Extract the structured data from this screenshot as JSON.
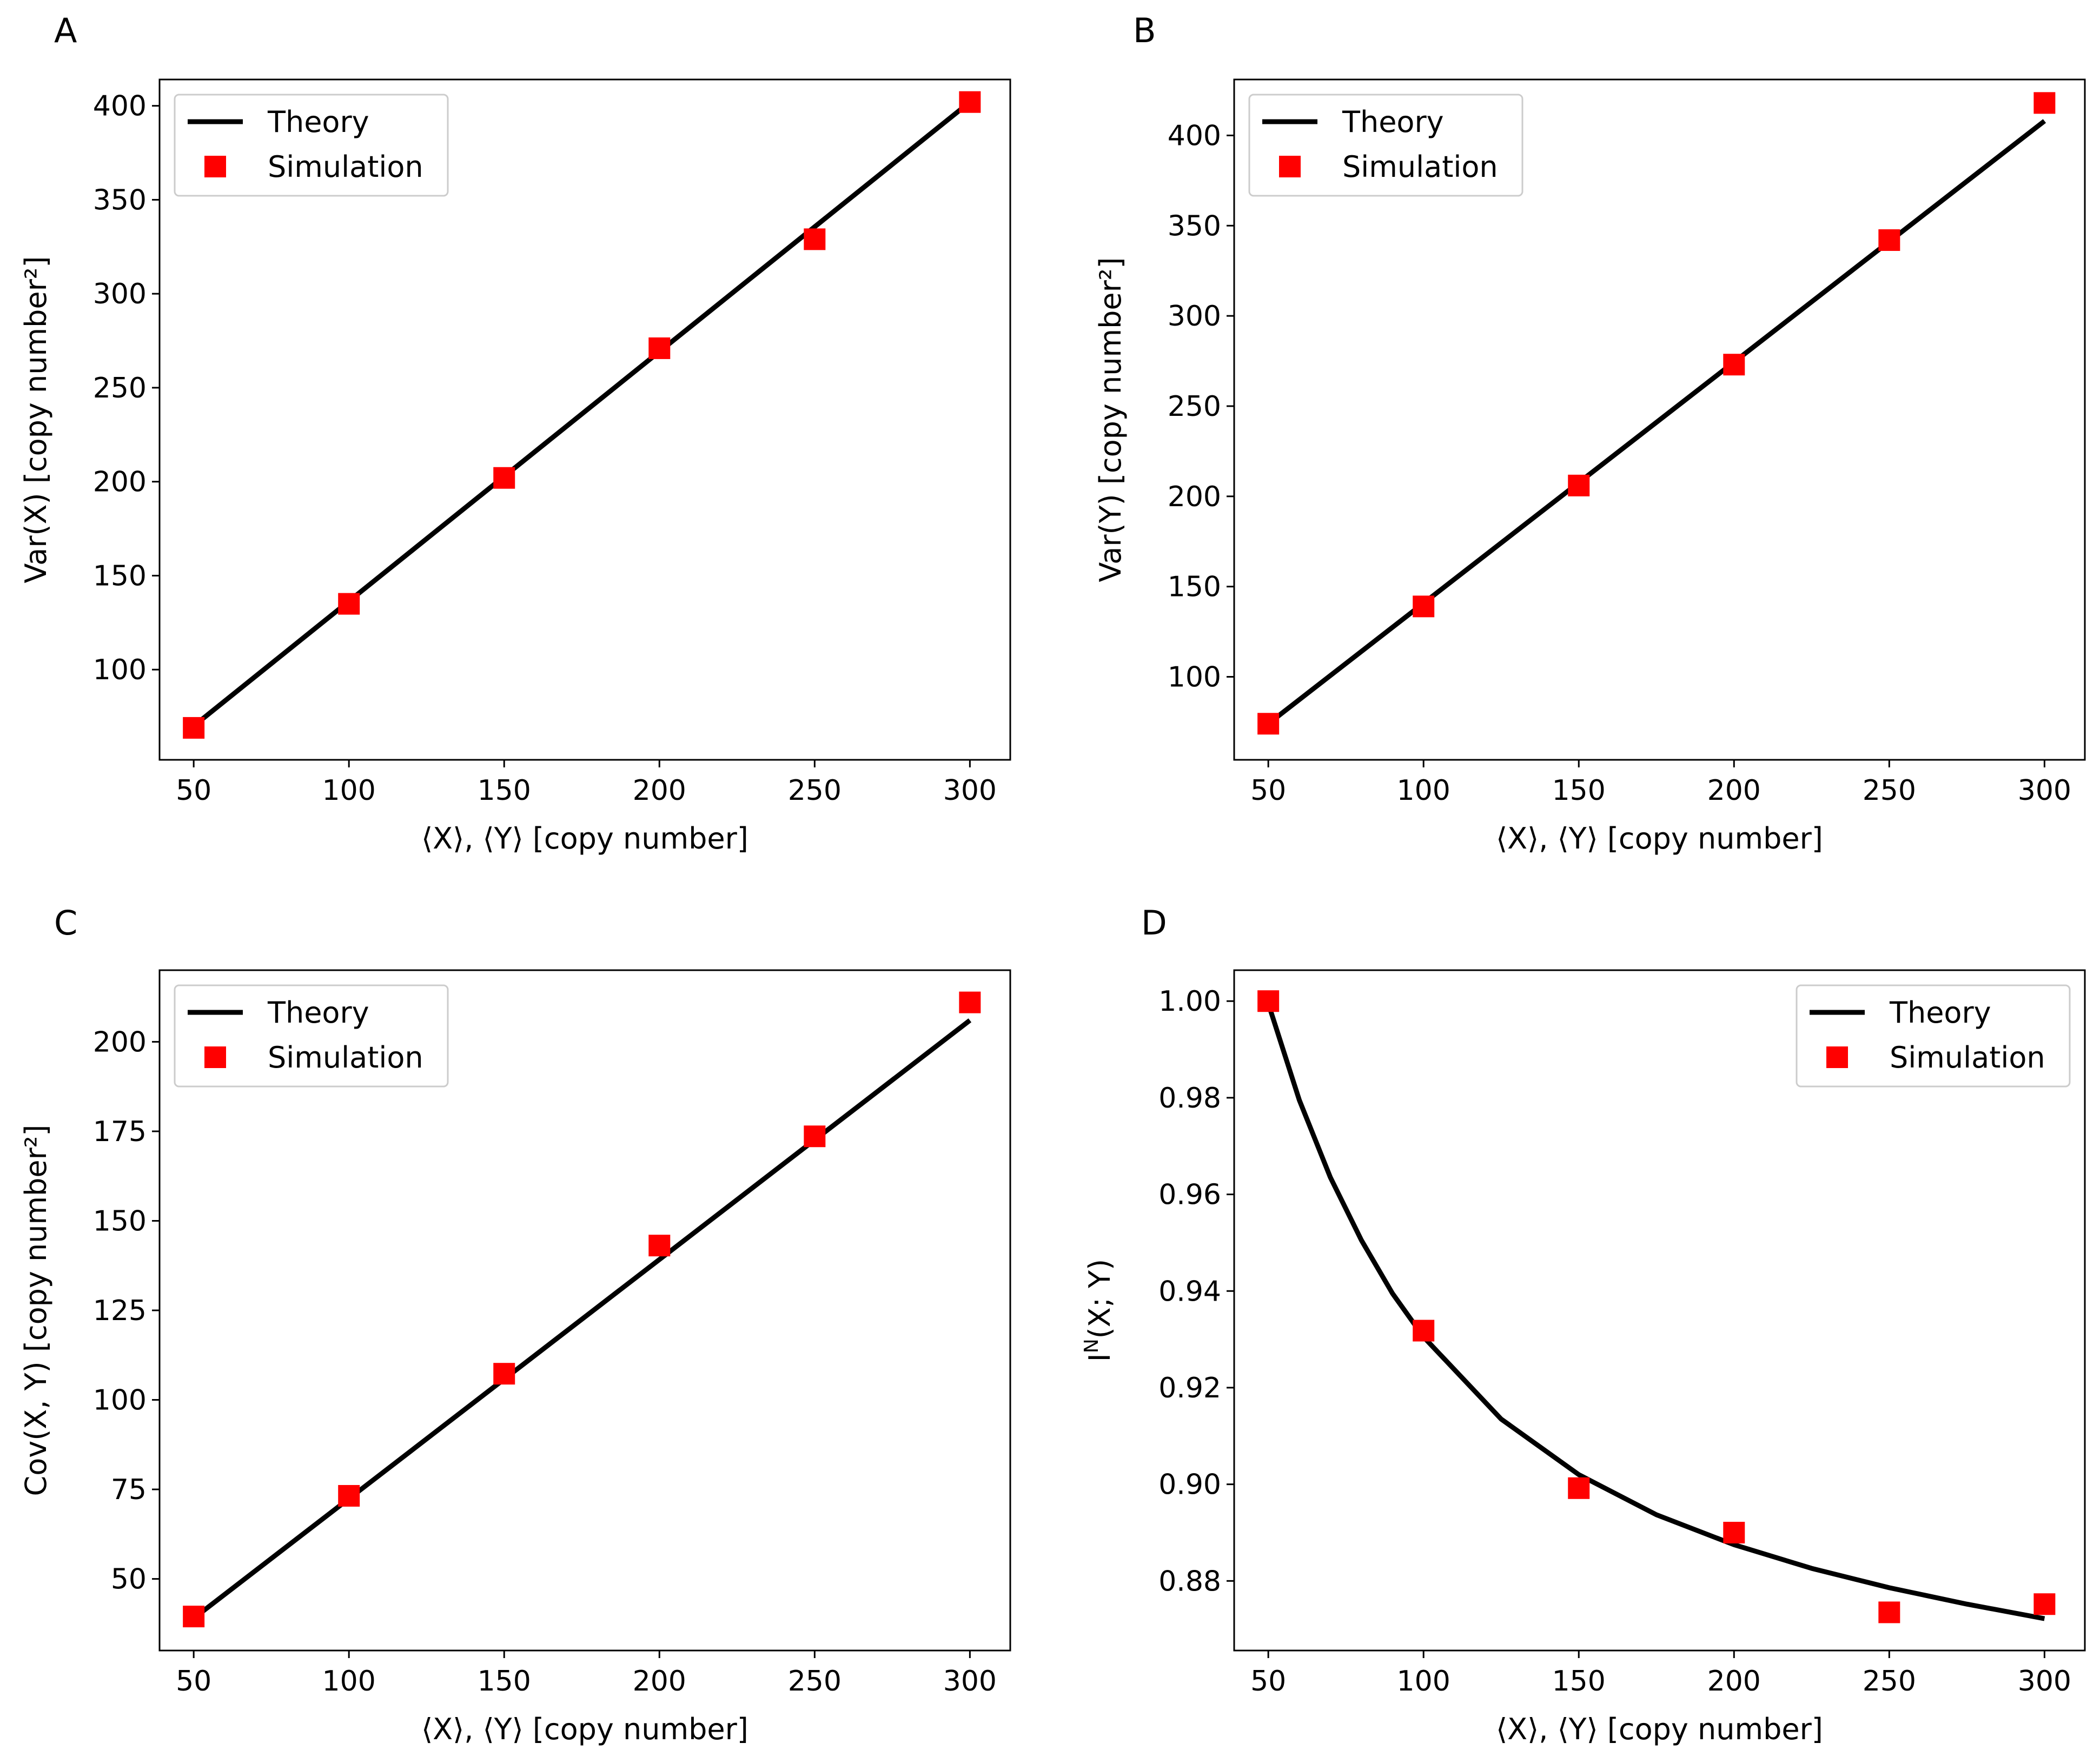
{
  "figure": {
    "panels": [
      {
        "letter": "A",
        "chart_index": 0
      },
      {
        "letter": "B",
        "chart_index": 1
      },
      {
        "letter": "C",
        "chart_index": 2
      },
      {
        "letter": "D",
        "chart_index": 3
      }
    ]
  },
  "chart_data": [
    {
      "type": "line",
      "panel": "A",
      "title": "",
      "xlabel": "⟨X⟩, ⟨Y⟩ [copy number]",
      "ylabel": "Var(X) [copy number²]",
      "xlim": [
        39,
        313
      ],
      "ylim": [
        52,
        414
      ],
      "xticks": [
        "50",
        "100",
        "150",
        "200",
        "250",
        "300"
      ],
      "yticks": [
        "100",
        "150",
        "200",
        "250",
        "300",
        "350",
        "400"
      ],
      "grid": false,
      "legend": {
        "position": "top-left",
        "entries": [
          "Theory",
          "Simulation"
        ]
      },
      "series": [
        {
          "name": "Theory",
          "kind": "line",
          "color": "#000000",
          "x": [
            50,
            300
          ],
          "y": [
            70,
            402
          ]
        },
        {
          "name": "Simulation",
          "kind": "marker",
          "marker": "square",
          "color": "#ff0000",
          "x": [
            50,
            100,
            150,
            200,
            250,
            300
          ],
          "y": [
            69,
            135,
            202,
            271,
            329,
            402
          ]
        }
      ]
    },
    {
      "type": "line",
      "panel": "B",
      "title": "",
      "xlabel": "⟨X⟩, ⟨Y⟩ [copy number]",
      "ylabel": "Var(Y) [copy number²]",
      "xlim": [
        39,
        313
      ],
      "ylim": [
        54,
        431
      ],
      "xticks": [
        "50",
        "100",
        "150",
        "200",
        "250",
        "300"
      ],
      "yticks": [
        "100",
        "150",
        "200",
        "250",
        "300",
        "350",
        "400"
      ],
      "grid": false,
      "legend": {
        "position": "top-left",
        "entries": [
          "Theory",
          "Simulation"
        ]
      },
      "series": [
        {
          "name": "Theory",
          "kind": "line",
          "color": "#000000",
          "x": [
            50,
            300
          ],
          "y": [
            74,
            408
          ]
        },
        {
          "name": "Simulation",
          "kind": "marker",
          "marker": "square",
          "color": "#ff0000",
          "x": [
            50,
            100,
            150,
            200,
            250,
            300
          ],
          "y": [
            74,
            139,
            206,
            273,
            342,
            418
          ]
        }
      ]
    },
    {
      "type": "line",
      "panel": "C",
      "title": "",
      "xlabel": "⟨X⟩, ⟨Y⟩ [copy number]",
      "ylabel": "Cov(X, Y) [copy number²]",
      "xlim": [
        39,
        313
      ],
      "ylim": [
        30,
        220
      ],
      "xticks": [
        "50",
        "100",
        "150",
        "200",
        "250",
        "300"
      ],
      "yticks": [
        "50",
        "75",
        "100",
        "125",
        "150",
        "175",
        "200"
      ],
      "grid": false,
      "legend": {
        "position": "top-left",
        "entries": [
          "Theory",
          "Simulation"
        ]
      },
      "series": [
        {
          "name": "Theory",
          "kind": "line",
          "color": "#000000",
          "x": [
            50,
            300
          ],
          "y": [
            39,
            206
          ]
        },
        {
          "name": "Simulation",
          "kind": "marker",
          "marker": "square",
          "color": "#ff0000",
          "x": [
            50,
            100,
            150,
            200,
            250,
            300
          ],
          "y": [
            39.5,
            73.2,
            107.3,
            143.1,
            173.6,
            211.0
          ]
        }
      ]
    },
    {
      "type": "line",
      "panel": "D",
      "title": "",
      "xlabel": "⟨X⟩, ⟨Y⟩ [copy number]",
      "ylabel": "I^N(X; Y)",
      "ylabel_base": "I",
      "ylabel_sup": "N",
      "ylabel_rest": "(X; Y)",
      "xlim": [
        39,
        313
      ],
      "ylim": [
        0.8656,
        1.0064
      ],
      "xticks": [
        "50",
        "100",
        "150",
        "200",
        "250",
        "300"
      ],
      "yticks": [
        "0.88",
        "0.90",
        "0.92",
        "0.94",
        "0.96",
        "0.98",
        "1.00"
      ],
      "grid": false,
      "legend": {
        "position": "top-right",
        "entries": [
          "Theory",
          "Simulation"
        ]
      },
      "series": [
        {
          "name": "Theory",
          "kind": "line",
          "color": "#000000",
          "x": [
            50,
            60,
            70,
            80,
            90,
            100,
            125,
            150,
            175,
            200,
            225,
            250,
            275,
            300
          ],
          "y": [
            0.9995,
            0.9795,
            0.9635,
            0.9505,
            0.9395,
            0.9305,
            0.9135,
            0.902,
            0.8937,
            0.8875,
            0.8826,
            0.8786,
            0.8752,
            0.8722
          ]
        },
        {
          "name": "Simulation",
          "kind": "marker",
          "marker": "square",
          "color": "#ff0000",
          "x": [
            50,
            100,
            150,
            200,
            250,
            300
          ],
          "y": [
            1.0,
            0.9318,
            0.8992,
            0.89,
            0.8735,
            0.8752
          ]
        }
      ]
    }
  ]
}
